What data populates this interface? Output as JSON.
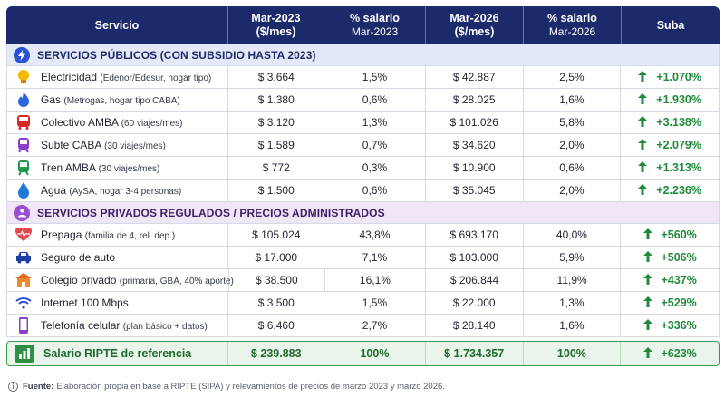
{
  "header": {
    "col1": "Servicio",
    "col2a": "Mar-2023",
    "col2b": "($/mes)",
    "col3a": "% salario",
    "col3b": "Mar-2023",
    "col4a": "Mar-2026",
    "col4b": "($/mes)",
    "col5a": "% salario",
    "col5b": "Mar-2026",
    "col6": "Suba"
  },
  "sections": {
    "public": {
      "title": "SERVICIOS PÚBLICOS (CON SUBSIDIO HASTA 2023)",
      "icon": "lightning-icon"
    },
    "private": {
      "title": "SERVICIOS PRIVADOS REGULADOS / PRECIOS ADMINISTRADOS",
      "icon": "person-icon"
    }
  },
  "public_rows": [
    {
      "icon": "lightbulb-icon",
      "name": "Electricidad",
      "detail": "(Edenor/Edesur, hogar tipo)",
      "p2023": "$ 3.664",
      "s2023": "1,5%",
      "p2026": "$ 42.887",
      "s2026": "2,5%",
      "rise": "+1.070%"
    },
    {
      "icon": "flame-icon",
      "name": "Gas",
      "detail": "(Metrogas, hogar tipo CABA)",
      "p2023": "$ 1.380",
      "s2023": "0,6%",
      "p2026": "$ 28.025",
      "s2026": "1,6%",
      "rise": "+1.930%"
    },
    {
      "icon": "bus-icon",
      "name": "Colectivo AMBA",
      "detail": "(60 viajes/mes)",
      "p2023": "$ 3.120",
      "s2023": "1,3%",
      "p2026": "$ 101.026",
      "s2026": "5,8%",
      "rise": "+3.138%"
    },
    {
      "icon": "subway-icon",
      "name": "Subte CABA",
      "detail": "(30 viajes/mes)",
      "p2023": "$ 1.589",
      "s2023": "0,7%",
      "p2026": "$ 34.620",
      "s2026": "2,0%",
      "rise": "+2.079%"
    },
    {
      "icon": "train-icon",
      "name": "Tren AMBA",
      "detail": "(30 viajes/mes)",
      "p2023": "$ 772",
      "s2023": "0,3%",
      "p2026": "$ 10.900",
      "s2026": "0,6%",
      "rise": "+1.313%"
    },
    {
      "icon": "water-drop-icon",
      "name": "Agua",
      "detail": "(AySA, hogar 3-4 personas)",
      "p2023": "$ 1.500",
      "s2023": "0,6%",
      "p2026": "$ 35.045",
      "s2026": "2,0%",
      "rise": "+2.236%"
    }
  ],
  "private_rows": [
    {
      "icon": "heartbeat-icon",
      "name": "Prepaga",
      "detail": "(familia de 4, rel. dep.)",
      "p2023": "$ 105.024",
      "s2023": "43,8%",
      "p2026": "$ 693.170",
      "s2026": "40,0%",
      "rise": "+560%"
    },
    {
      "icon": "car-icon",
      "name": "Seguro de auto",
      "detail": "",
      "p2023": "$ 17.000",
      "s2023": "7,1%",
      "p2026": "$ 103.000",
      "s2026": "5,9%",
      "rise": "+506%"
    },
    {
      "icon": "school-icon",
      "name": "Colegio privado",
      "detail": "(primaria, GBA, 40% aporte)",
      "p2023": "$ 38.500",
      "s2023": "16,1%",
      "p2026": "$ 206.844",
      "s2026": "11,9%",
      "rise": "+437%"
    },
    {
      "icon": "wifi-icon",
      "name": "Internet 100 Mbps",
      "detail": "",
      "p2023": "$ 3.500",
      "s2023": "1,5%",
      "p2026": "$ 22.000",
      "s2026": "1,3%",
      "rise": "+529%"
    },
    {
      "icon": "smartphone-icon",
      "name": "Telefonía celular",
      "detail": "(plan básico + datos)",
      "p2023": "$ 6.460",
      "s2023": "2,7%",
      "p2026": "$ 28.140",
      "s2026": "1,6%",
      "rise": "+336%"
    }
  ],
  "total": {
    "icon": "bar-chart-icon",
    "name": "Salario RIPTE de referencia",
    "p2023": "$ 239.883",
    "s2023": "100%",
    "p2026": "$ 1.734.357",
    "s2026": "100%",
    "rise": "+623%"
  },
  "source": {
    "label": "Fuente:",
    "text": "Elaboración propia en base a RIPTE (SIPA) y relevamientos de precios de marzo 2023 y marzo 2026."
  },
  "colors": {
    "header_bg": "#1b2a6b",
    "public_section": "#e4e9f7",
    "private_section": "#f1e6f8",
    "rise_green": "#1e8a3a",
    "total_bg": "#e9f5ea"
  }
}
